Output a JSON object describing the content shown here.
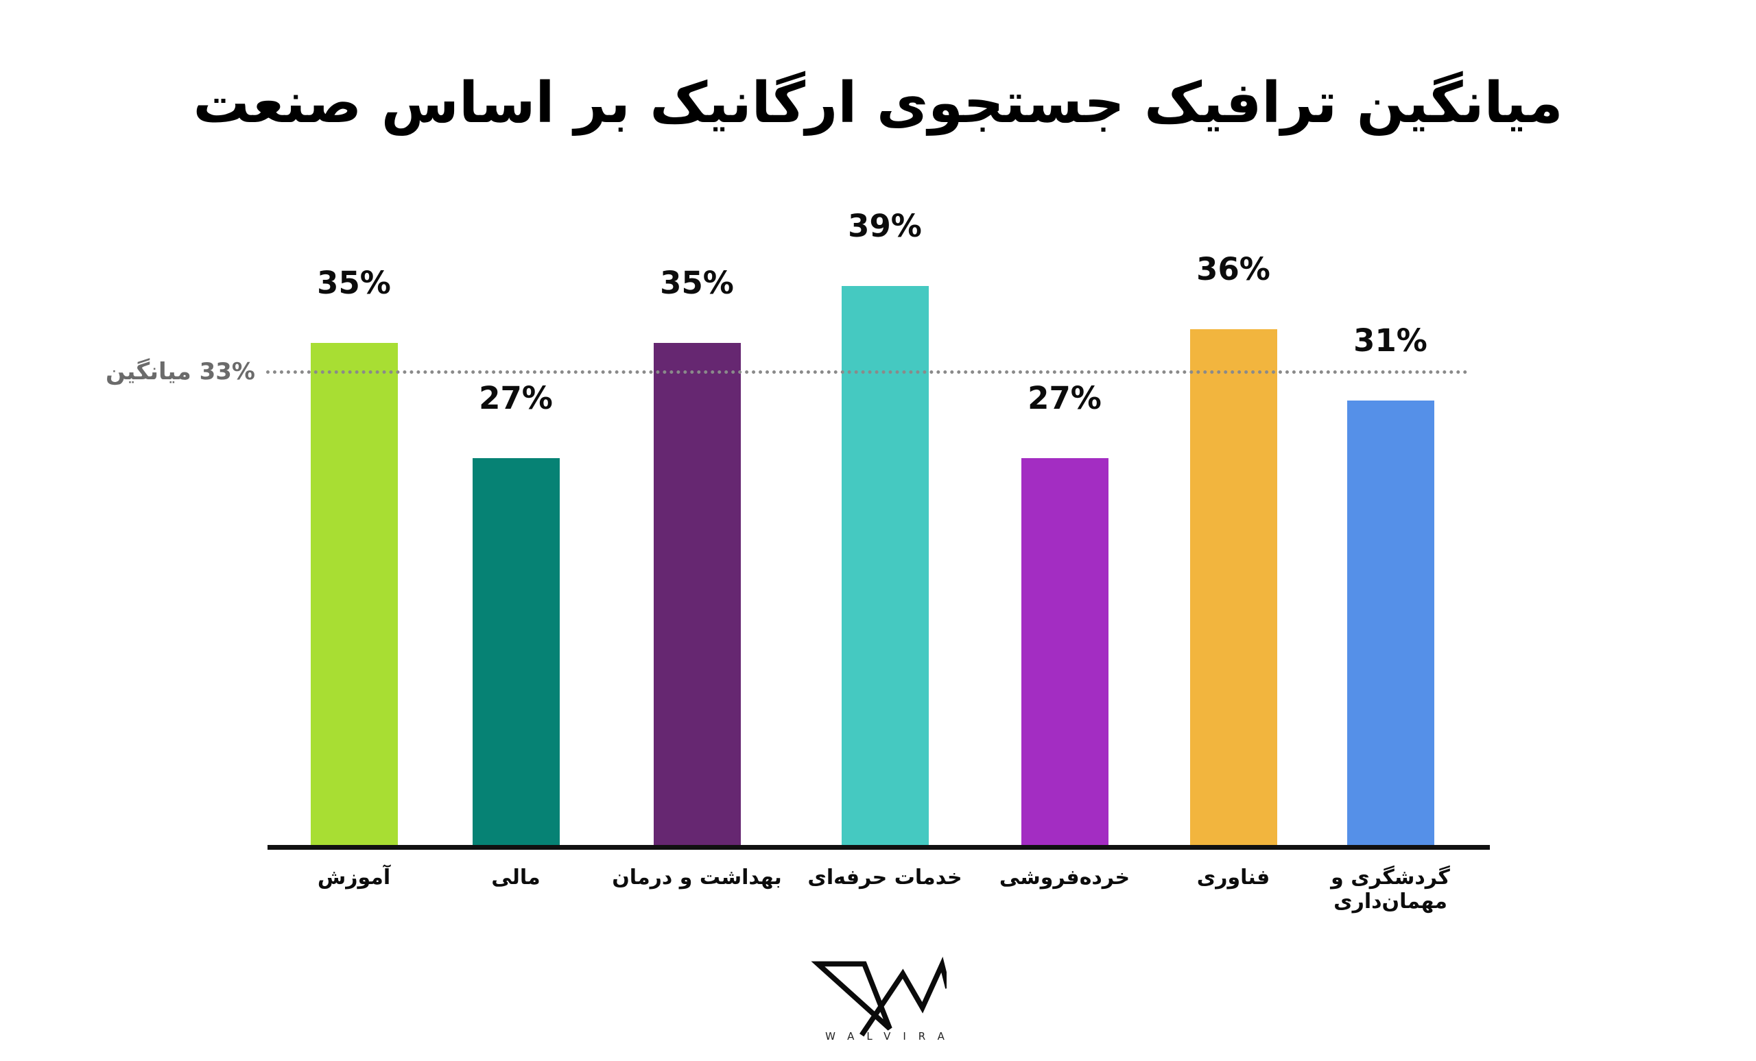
{
  "title": "میانگین ترافیک جستجوی ارگانیک بر اساس صنعت",
  "chart_data": {
    "type": "bar",
    "title": "میانگین ترافیک جستجوی ارگانیک بر اساس صنعت",
    "direction": "rtl",
    "xlabel": "",
    "ylabel": "",
    "ylim": [
      0,
      42
    ],
    "grid": false,
    "legend": "none",
    "categories": [
      "آموزش",
      "مالی",
      "بهداشت و درمان",
      "خدمات حرفه‌ای",
      "خرده‌فروشی",
      "فناوری",
      "گردشگری و مهمان‌داری"
    ],
    "values": [
      35,
      27,
      35,
      39,
      27,
      36,
      31
    ],
    "value_suffix": "%",
    "bar_colors": [
      "#a8de33",
      "#068274",
      "#662771",
      "#45c9c1",
      "#a32dc2",
      "#f2b53e",
      "#5590e8"
    ],
    "average": {
      "value": 33,
      "label": "33% میانگین",
      "line_style": "dotted",
      "line_color": "#8a8a8a",
      "label_color": "#6b6b6b"
    },
    "axis_color": "#111111",
    "value_label_color": "#0c0c0c"
  },
  "footer": {
    "brand": "WALVIRA",
    "logo_icon": "walvira-w-logo"
  }
}
